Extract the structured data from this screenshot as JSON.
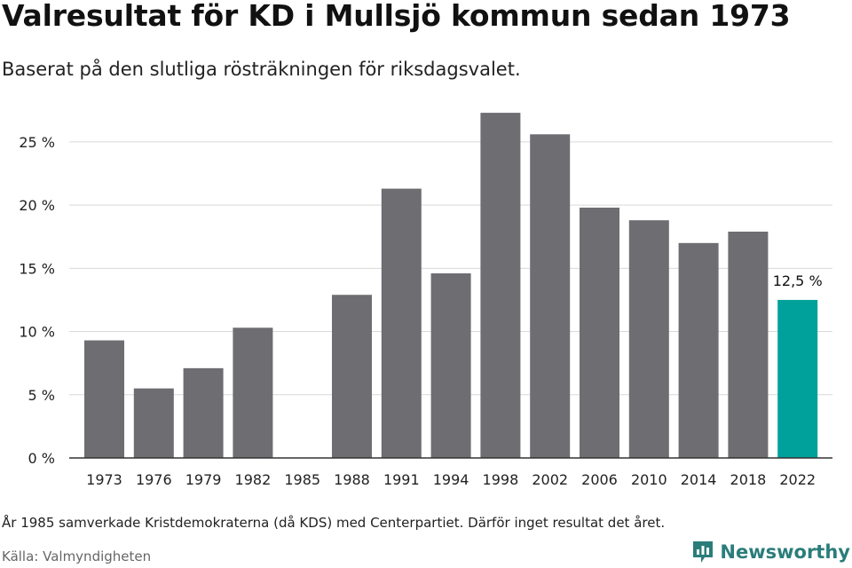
{
  "header": {
    "title": "Valresultat för KD i Mullsjö kommun sedan 1973",
    "subtitle": "Baserat på den slutliga rösträkningen för riksdagsvalet."
  },
  "footer": {
    "note": "År 1985 samverkade Kristdemokraterna (då KDS) med Centerpartiet. Därför inget resultat det året.",
    "source": "Källa: Valmyndigheten",
    "brand": "Newsworthy"
  },
  "colors": {
    "bar": "#6e6d72",
    "highlight": "#00a19a",
    "grid": "#d9d9d9",
    "axis": "#333333",
    "brand": "#2a7d7a"
  },
  "icons": {
    "brand_logo": "newsworthy-logo-icon"
  },
  "chart_data": {
    "type": "bar",
    "title": "Valresultat för KD i Mullsjö kommun sedan 1973",
    "subtitle": "Baserat på den slutliga rösträkningen för riksdagsvalet.",
    "categories": [
      "1973",
      "1976",
      "1979",
      "1982",
      "1985",
      "1988",
      "1991",
      "1994",
      "1998",
      "2002",
      "2006",
      "2010",
      "2014",
      "2018",
      "2022"
    ],
    "values": [
      9.3,
      5.5,
      7.1,
      10.3,
      null,
      12.9,
      21.3,
      14.6,
      27.3,
      25.6,
      19.8,
      18.8,
      17.0,
      17.9,
      12.5
    ],
    "highlight_index": 14,
    "data_labels": [
      {
        "index": 14,
        "text": "12,5 %"
      }
    ],
    "y_ticks": [
      0,
      5,
      10,
      15,
      20,
      25
    ],
    "y_tick_labels": [
      "0 %",
      "5 %",
      "10 %",
      "15 %",
      "20 %",
      "25 %"
    ],
    "ylim": [
      0,
      28.5
    ],
    "grid": true,
    "legend": "none",
    "xlabel": "",
    "ylabel": ""
  }
}
